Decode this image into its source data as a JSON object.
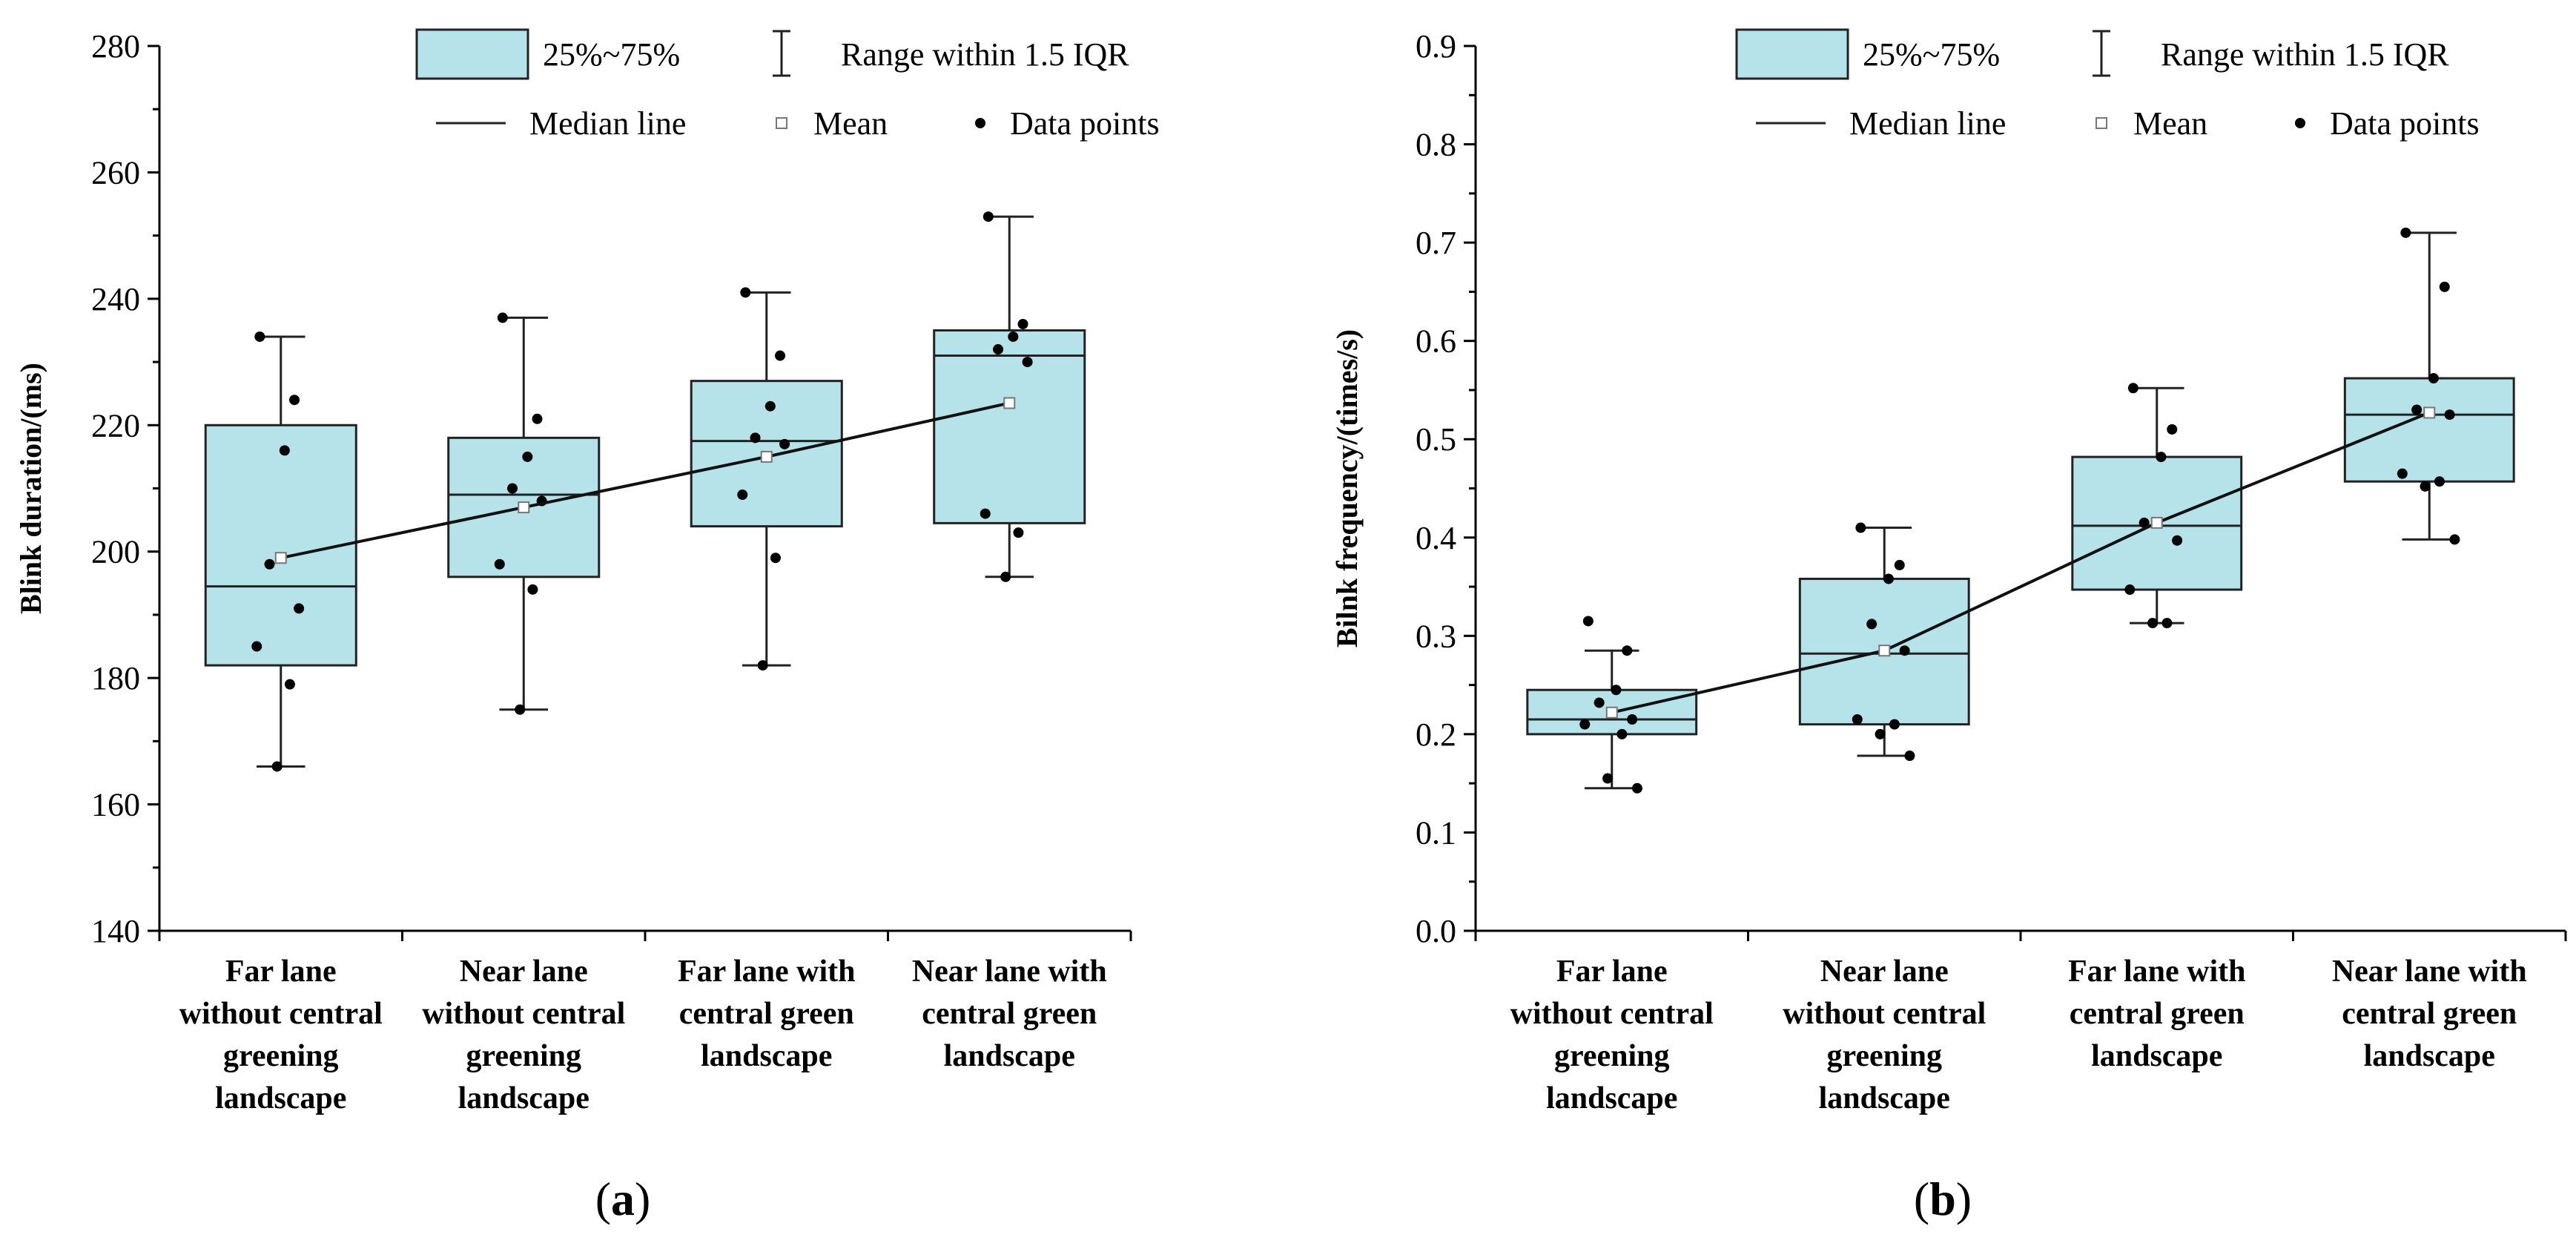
{
  "chart_data": [
    {
      "type": "box",
      "panel_label": "(a)",
      "panel_letter": "a",
      "ylabel": "Blink duration/(ms)",
      "ylim": [
        140,
        280
      ],
      "yticks": [
        140,
        160,
        180,
        200,
        220,
        240,
        260,
        280
      ],
      "categories": [
        [
          "Far lane",
          "without central",
          "greening",
          "landscape"
        ],
        [
          "Near lane",
          "without central",
          "greening",
          "landscape"
        ],
        [
          "Far lane with",
          "central green",
          "landscape"
        ],
        [
          "Near lane with",
          "central green",
          "landscape"
        ]
      ],
      "boxes": [
        {
          "q1": 182,
          "median": 194.5,
          "q3": 220,
          "whisker_low": 166,
          "whisker_high": 234,
          "mean": 199,
          "points": [
            234,
            224,
            216,
            198,
            191,
            185,
            179,
            166
          ]
        },
        {
          "q1": 196,
          "median": 209,
          "q3": 218,
          "whisker_low": 175,
          "whisker_high": 237,
          "mean": 207,
          "points": [
            237,
            221,
            215,
            210,
            208,
            198,
            194,
            175
          ]
        },
        {
          "q1": 204,
          "median": 217.5,
          "q3": 227,
          "whisker_low": 182,
          "whisker_high": 241,
          "mean": 215,
          "points": [
            241,
            231,
            223,
            218,
            217,
            209,
            199,
            182
          ]
        },
        {
          "q1": 204.5,
          "median": 231,
          "q3": 235,
          "whisker_low": 196,
          "whisker_high": 253,
          "mean": 223.5,
          "points": [
            253,
            236,
            234,
            232,
            230,
            206,
            203,
            196
          ]
        }
      ]
    },
    {
      "type": "box",
      "panel_label": "(b)",
      "panel_letter": "b",
      "ylabel": "Bilnk frequency/(times/s)",
      "ylim": [
        0.0,
        0.9
      ],
      "yticks": [
        "0.0",
        "0.1",
        "0.2",
        "0.3",
        "0.4",
        "0.5",
        "0.6",
        "0.7",
        "0.8",
        "0.9"
      ],
      "categories": [
        [
          "Far lane",
          "without central",
          "greening",
          "landscape"
        ],
        [
          "Near lane",
          "without central",
          "greening",
          "landscape"
        ],
        [
          "Far lane with",
          "central green",
          "landscape"
        ],
        [
          "Near lane with",
          "central green",
          "landscape"
        ]
      ],
      "boxes": [
        {
          "q1": 0.2,
          "median": 0.215,
          "q3": 0.245,
          "whisker_low": 0.145,
          "whisker_high": 0.285,
          "mean": 0.222,
          "points": [
            0.315,
            0.285,
            0.245,
            0.232,
            0.215,
            0.21,
            0.2,
            0.155,
            0.145
          ]
        },
        {
          "q1": 0.21,
          "median": 0.282,
          "q3": 0.358,
          "whisker_low": 0.178,
          "whisker_high": 0.41,
          "mean": 0.285,
          "points": [
            0.41,
            0.372,
            0.358,
            0.312,
            0.285,
            0.215,
            0.21,
            0.2,
            0.178
          ]
        },
        {
          "q1": 0.347,
          "median": 0.412,
          "q3": 0.482,
          "whisker_low": 0.313,
          "whisker_high": 0.552,
          "mean": 0.415,
          "points": [
            0.552,
            0.51,
            0.482,
            0.415,
            0.397,
            0.347,
            0.313,
            0.313
          ]
        },
        {
          "q1": 0.457,
          "median": 0.525,
          "q3": 0.562,
          "whisker_low": 0.398,
          "whisker_high": 0.71,
          "mean": 0.527,
          "points": [
            0.71,
            0.655,
            0.562,
            0.53,
            0.525,
            0.465,
            0.457,
            0.452,
            0.398
          ]
        }
      ]
    }
  ],
  "legend": {
    "box_label": "25%~75%",
    "range_label": "Range within 1.5 IQR",
    "median_label": "Median line",
    "mean_label": "Mean",
    "points_label": "Data points"
  },
  "colors": {
    "box_fill": "#b6e3ea",
    "stroke": "#222222",
    "mean_fill": "#ffffff",
    "mean_stroke": "#777777"
  }
}
